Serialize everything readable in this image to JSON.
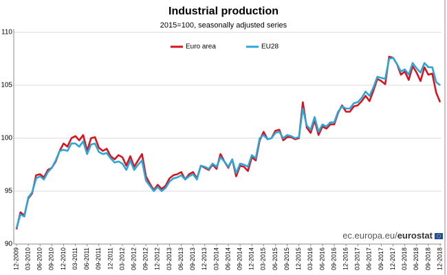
{
  "chart_data": {
    "type": "line",
    "title": "Industrial production",
    "subtitle": "2015=100, seasonally adjusted series",
    "source": [
      "ec.europa.eu/",
      "eurostat"
    ],
    "categories": [
      "12-2009",
      null,
      null,
      "03-2010",
      null,
      null,
      "06-2010",
      null,
      null,
      "09-2010",
      null,
      null,
      "12-2010",
      null,
      null,
      "03-2011",
      null,
      null,
      "06-2011",
      null,
      null,
      "09-2011",
      null,
      null,
      "12-2011",
      null,
      null,
      "03-2012",
      null,
      null,
      "06-2012",
      null,
      null,
      "09-2012",
      null,
      null,
      "12-2012",
      null,
      null,
      "03-2013",
      null,
      null,
      "06-2013",
      null,
      null,
      "09-2013",
      null,
      null,
      "12-2013",
      null,
      null,
      "03-2014",
      null,
      null,
      "06-2014",
      null,
      null,
      "09-2014",
      null,
      null,
      "12-2014",
      null,
      null,
      "03-2015",
      null,
      null,
      "06-2015",
      null,
      null,
      "09-2015",
      null,
      null,
      "12-2015",
      null,
      null,
      "03-2016",
      null,
      null,
      "06-2016",
      null,
      null,
      "09-2016",
      null,
      null,
      "12-2016",
      null,
      null,
      "03-2017",
      null,
      null,
      "06-2017",
      null,
      null,
      "09-2017",
      null,
      null,
      "12-2017",
      null,
      null,
      "03-2018",
      null,
      null,
      "06-2018",
      null,
      null,
      "09-2018",
      null,
      null,
      "12-2018"
    ],
    "series": [
      {
        "name": "Euro area",
        "color": "#d7141d",
        "values": [
          91.4,
          93.0,
          92.7,
          94.3,
          94.8,
          96.5,
          96.6,
          96.3,
          97.0,
          97.2,
          97.8,
          98.8,
          99.5,
          99.2,
          100.0,
          100.2,
          99.8,
          100.3,
          98.8,
          100.0,
          100.1,
          99.1,
          98.8,
          99.0,
          98.3,
          98.0,
          98.4,
          98.2,
          97.4,
          98.3,
          97.3,
          97.9,
          98.5,
          96.4,
          95.7,
          95.1,
          95.6,
          95.2,
          95.5,
          96.2,
          96.5,
          96.6,
          96.8,
          96.1,
          96.6,
          96.8,
          96.2,
          97.4,
          97.2,
          97.0,
          97.5,
          97.1,
          98.5,
          97.8,
          97.2,
          98.0,
          96.4,
          97.4,
          97.3,
          96.9,
          98.2,
          97.9,
          99.8,
          100.6,
          99.9,
          100.0,
          100.7,
          100.8,
          99.8,
          100.1,
          100.1,
          99.9,
          100.0,
          103.4,
          101.0,
          100.5,
          101.7,
          100.3,
          101.1,
          100.9,
          101.3,
          101.3,
          102.4,
          103.1,
          102.5,
          102.5,
          103.0,
          103.1,
          103.5,
          104.0,
          103.5,
          104.5,
          105.6,
          105.4,
          105.1,
          107.7,
          107.6,
          107.0,
          106.0,
          106.3,
          105.5,
          106.8,
          106.2,
          105.4,
          106.7,
          106.0,
          106.1,
          104.3,
          103.4
        ]
      },
      {
        "name": "EU28",
        "color": "#2aa6d8",
        "values": [
          91.5,
          92.8,
          92.6,
          94.4,
          94.9,
          96.2,
          96.4,
          96.1,
          96.8,
          97.2,
          97.9,
          98.8,
          98.9,
          98.8,
          99.5,
          99.5,
          99.2,
          99.7,
          98.5,
          99.4,
          99.5,
          98.7,
          98.5,
          98.6,
          98.1,
          97.7,
          97.8,
          97.6,
          97.0,
          97.9,
          97.0,
          97.5,
          97.9,
          96.0,
          95.5,
          95.0,
          95.4,
          95.0,
          95.3,
          95.9,
          96.2,
          96.3,
          96.5,
          96.1,
          96.4,
          96.6,
          96.1,
          97.4,
          97.3,
          97.1,
          97.6,
          97.3,
          98.2,
          97.8,
          97.3,
          98.0,
          96.7,
          97.6,
          97.5,
          97.3,
          98.4,
          98.1,
          100.0,
          100.3,
          99.9,
          100.0,
          100.5,
          100.6,
          100.0,
          100.3,
          100.2,
          100.0,
          100.1,
          102.8,
          101.2,
          100.8,
          102.0,
          100.6,
          101.3,
          101.1,
          101.5,
          101.5,
          102.5,
          103.0,
          102.8,
          102.8,
          103.3,
          103.4,
          103.8,
          104.4,
          104.0,
          104.8,
          105.8,
          105.7,
          105.6,
          107.5,
          107.6,
          107.0,
          106.3,
          106.5,
          106.0,
          107.1,
          106.6,
          106.2,
          107.1,
          106.7,
          106.7,
          105.3,
          105.0
        ]
      }
    ],
    "ylim": [
      90,
      110
    ],
    "yticks": [
      90,
      95,
      100,
      105,
      110
    ],
    "grid": true,
    "legend": "top"
  }
}
